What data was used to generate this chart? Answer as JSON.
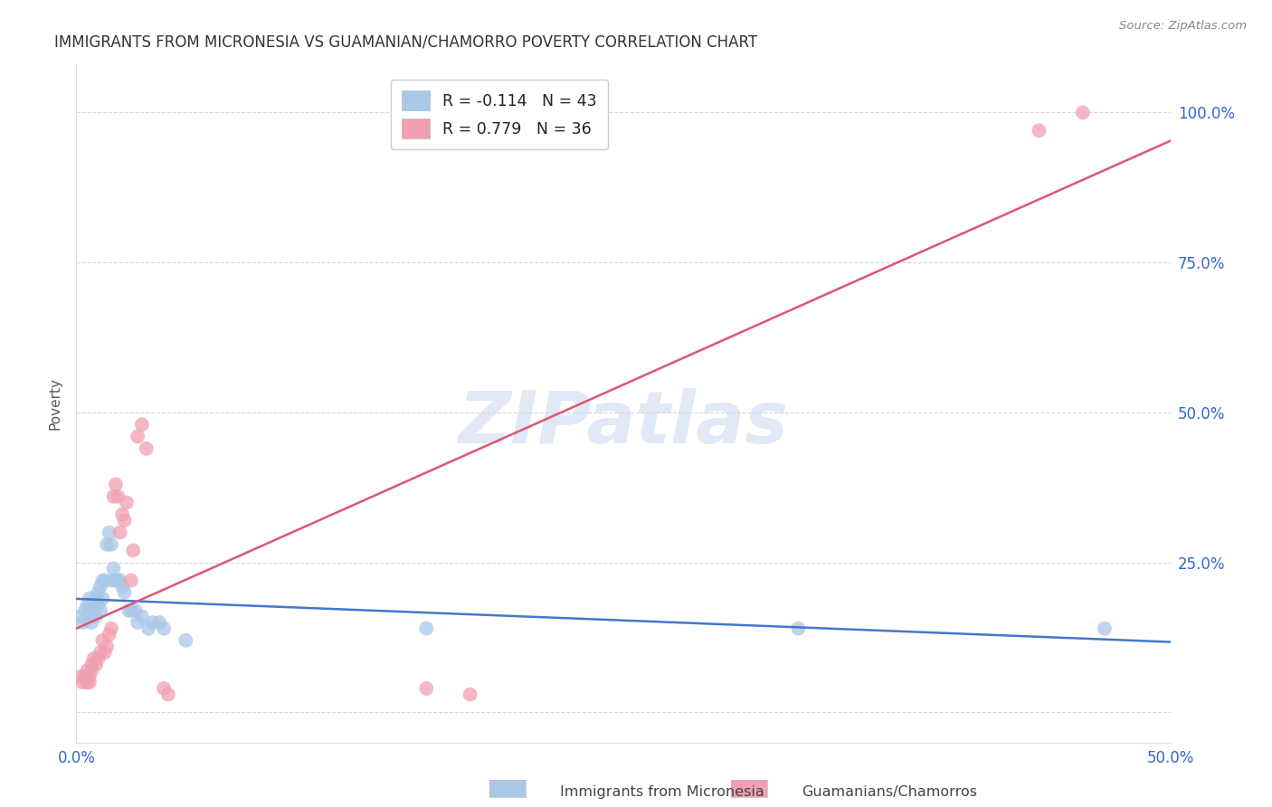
{
  "title": "IMMIGRANTS FROM MICRONESIA VS GUAMANIAN/CHAMORRO POVERTY CORRELATION CHART",
  "source": "Source: ZipAtlas.com",
  "ylabel": "Poverty",
  "xlim": [
    0.0,
    0.5
  ],
  "ylim": [
    -0.05,
    1.08
  ],
  "yticks": [
    0.0,
    0.25,
    0.5,
    0.75,
    1.0
  ],
  "xticks": [
    0.0,
    0.1,
    0.2,
    0.3,
    0.4,
    0.5
  ],
  "watermark": "ZIPatlas",
  "series1_color": "#a8c8e8",
  "series2_color": "#f0a0b0",
  "line1_color": "#4477cc",
  "line2_color": "#dd5577",
  "background_color": "#ffffff",
  "grid_color": "#cccccc",
  "series1_label": "Immigrants from Micronesia",
  "series2_label": "Guamanians/Chamorros",
  "leg1_label": "R = -0.114   N = 43",
  "leg2_label": "R = 0.779   N = 36",
  "scatter1_x": [
    0.002,
    0.003,
    0.004,
    0.005,
    0.005,
    0.006,
    0.006,
    0.007,
    0.007,
    0.008,
    0.008,
    0.009,
    0.009,
    0.01,
    0.01,
    0.011,
    0.011,
    0.012,
    0.012,
    0.013,
    0.014,
    0.015,
    0.016,
    0.016,
    0.017,
    0.018,
    0.019,
    0.02,
    0.021,
    0.022,
    0.024,
    0.025,
    0.027,
    0.028,
    0.03,
    0.033,
    0.035,
    0.038,
    0.04,
    0.05,
    0.16,
    0.33,
    0.47
  ],
  "scatter1_y": [
    0.16,
    0.15,
    0.17,
    0.18,
    0.16,
    0.19,
    0.17,
    0.16,
    0.15,
    0.17,
    0.18,
    0.19,
    0.16,
    0.18,
    0.2,
    0.21,
    0.17,
    0.22,
    0.19,
    0.22,
    0.28,
    0.3,
    0.28,
    0.22,
    0.24,
    0.22,
    0.22,
    0.22,
    0.21,
    0.2,
    0.17,
    0.17,
    0.17,
    0.15,
    0.16,
    0.14,
    0.15,
    0.15,
    0.14,
    0.12,
    0.14,
    0.14,
    0.14
  ],
  "scatter2_x": [
    0.002,
    0.003,
    0.004,
    0.005,
    0.005,
    0.006,
    0.006,
    0.007,
    0.007,
    0.008,
    0.009,
    0.01,
    0.011,
    0.012,
    0.013,
    0.014,
    0.015,
    0.016,
    0.017,
    0.018,
    0.019,
    0.02,
    0.021,
    0.022,
    0.023,
    0.025,
    0.026,
    0.028,
    0.03,
    0.032,
    0.04,
    0.042,
    0.16,
    0.18,
    0.44,
    0.46
  ],
  "scatter2_y": [
    0.06,
    0.05,
    0.06,
    0.05,
    0.07,
    0.06,
    0.05,
    0.07,
    0.08,
    0.09,
    0.08,
    0.09,
    0.1,
    0.12,
    0.1,
    0.11,
    0.13,
    0.14,
    0.36,
    0.38,
    0.36,
    0.3,
    0.33,
    0.32,
    0.35,
    0.22,
    0.27,
    0.46,
    0.48,
    0.44,
    0.04,
    0.03,
    0.04,
    0.03,
    0.97,
    1.0
  ]
}
